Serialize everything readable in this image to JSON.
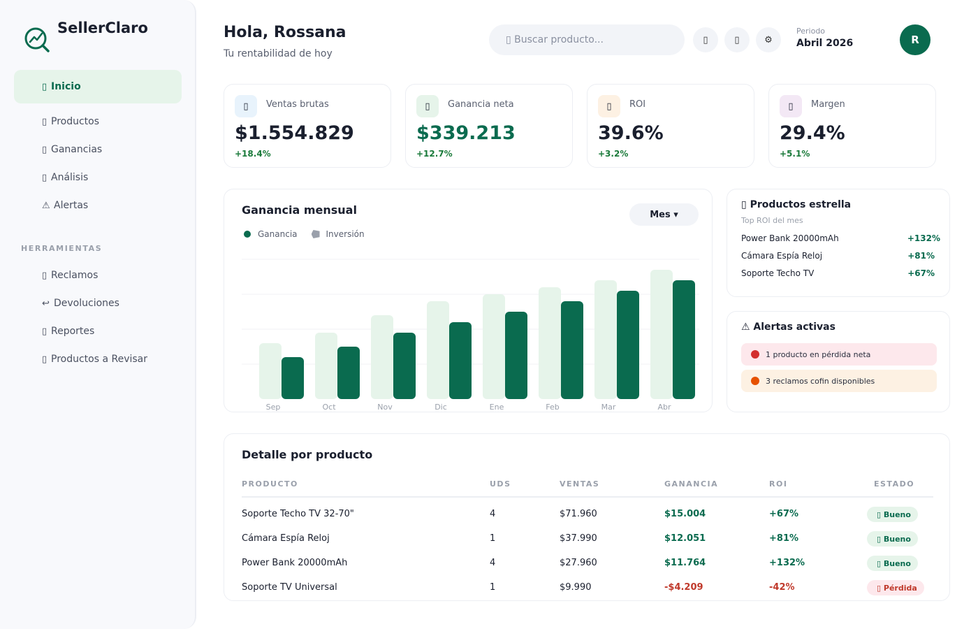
{
  "sidebar": {
    "brand": "SellerClaro",
    "items": [
      {
        "icon": "▯",
        "label": "Inicio"
      },
      {
        "icon": "▯",
        "label": "Productos"
      },
      {
        "icon": "▯",
        "label": "Ganancias"
      },
      {
        "icon": "▯",
        "label": "Análisis"
      },
      {
        "icon": "⚠",
        "label": "Alertas"
      }
    ],
    "section_label": "HERRAMIENTAS",
    "tools": [
      {
        "icon": "▯",
        "label": "Reclamos"
      },
      {
        "icon": "↩",
        "label": "Devoluciones"
      },
      {
        "icon": "▯",
        "label": "Reportes"
      },
      {
        "icon": "▯",
        "label": "Productos a Revisar"
      }
    ]
  },
  "header": {
    "greeting": "Hola, Rossana",
    "subtitle": "Tu rentabilidad de hoy",
    "search_placeholder": "▯ Buscar producto...",
    "btn1_icon": "▯",
    "btn2_icon": "▯",
    "btn3_icon": "⚙",
    "period_label": "Periodo",
    "period_value": "Abril 2026",
    "avatar_initial": "R"
  },
  "kpis": [
    {
      "icon": "▯",
      "label": "Ventas brutas",
      "value": "$1.554.829",
      "delta": "+18.4%",
      "icon_bg": "#e8f3fc"
    },
    {
      "icon": "▯",
      "label": "Ganancia neta",
      "value": "$339.213",
      "delta": "+12.7%",
      "icon_bg": "#e6f4ea"
    },
    {
      "icon": "▯",
      "label": "ROI",
      "value": "39.6%",
      "delta": "+3.2%",
      "icon_bg": "#fdf1e3"
    },
    {
      "icon": "▯",
      "label": "Margen",
      "value": "29.4%",
      "delta": "+5.1%",
      "icon_bg": "#f3e8f5"
    }
  ],
  "chart": {
    "title": "Ganancia mensual",
    "dropdown_label": "Mes ▾",
    "legend_ganancia": "Ganancia",
    "legend_inversion": "Inversión"
  },
  "chart_data": {
    "type": "bar",
    "title": "Ganancia mensual",
    "categories": [
      "Sep",
      "Oct",
      "Nov",
      "Dic",
      "Ene",
      "Feb",
      "Mar",
      "Abr"
    ],
    "series": [
      {
        "name": "Inversión",
        "color": "#e6f4ea",
        "values": [
          80,
          95,
          120,
          140,
          150,
          160,
          170,
          185
        ]
      },
      {
        "name": "Ganancia",
        "color": "#0a6b4f",
        "values": [
          60,
          75,
          95,
          110,
          125,
          140,
          155,
          170
        ]
      }
    ],
    "ylim": [
      0,
      200
    ],
    "grid": true,
    "legend_position": "top-left"
  },
  "stars": {
    "title": "▯ Productos estrella",
    "subtitle": "Top ROI del mes",
    "items": [
      {
        "name": "Power Bank 20000mAh",
        "roi": "+132%"
      },
      {
        "name": "Cámara Espía Reloj",
        "roi": "+81%"
      },
      {
        "name": "Soporte Techo TV",
        "roi": "+67%"
      }
    ]
  },
  "alerts": {
    "title": "⚠ Alertas activas",
    "items": [
      {
        "text": "1 producto en pérdida neta",
        "bg": "#fde8ec",
        "dot": "#d32f2f"
      },
      {
        "text": "3 reclamos cofin disponibles",
        "bg": "#fdf1e3",
        "dot": "#e65100"
      }
    ]
  },
  "table": {
    "title": "Detalle por producto",
    "headers": [
      "PRODUCTO",
      "UDS",
      "VENTAS",
      "GANANCIA",
      "ROI",
      "ESTADO"
    ],
    "rows": [
      {
        "producto": "Soporte Techo TV 32-70\"",
        "uds": "4",
        "ventas": "$71.960",
        "ganancia": "$15.004",
        "roi": "+67%",
        "estado": "▯ Bueno",
        "status": "good"
      },
      {
        "producto": "Cámara Espía Reloj",
        "uds": "1",
        "ventas": "$37.990",
        "ganancia": "$12.051",
        "roi": "+81%",
        "estado": "▯ Bueno",
        "status": "good"
      },
      {
        "producto": "Power Bank 20000mAh",
        "uds": "4",
        "ventas": "$27.960",
        "ganancia": "$11.764",
        "roi": "+132%",
        "estado": "▯ Bueno",
        "status": "good"
      },
      {
        "producto": "Soporte TV Universal",
        "uds": "1",
        "ventas": "$9.990",
        "ganancia": "-$4.209",
        "roi": "-42%",
        "estado": "▯ Pérdida",
        "status": "bad"
      }
    ]
  }
}
